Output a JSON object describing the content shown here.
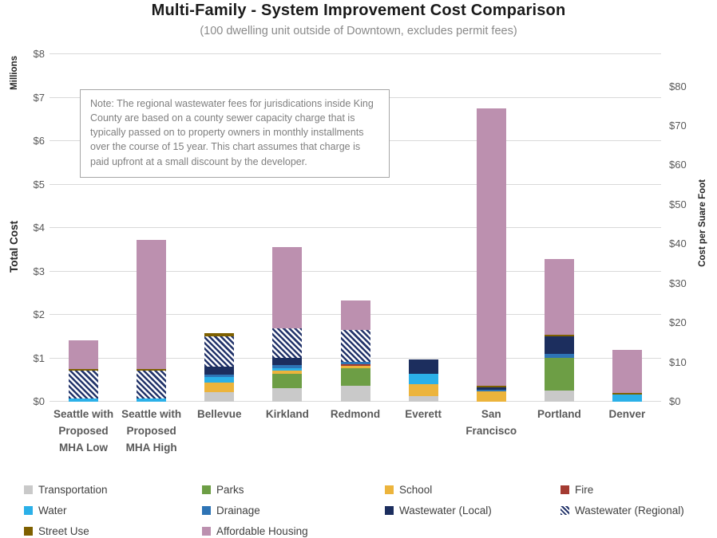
{
  "note": {
    "text": "Note: The regional wastewater fees for jurisdications inside King County are based on a county sewer capacity charge that is typically passed on to property owners in monthly installments over the course of 15 year. This chart assumes that charge is paid upfront at a small discount by the developer."
  },
  "chart_data": {
    "type": "bar",
    "stacked": true,
    "title": "Multi-Family - System Improvement Cost Comparison",
    "subtitle": "(100 dwelling unit outside of Downtown, excludes permit fees)",
    "categories": [
      "Seattle with Proposed MHA Low",
      "Seattle with Proposed MHA High",
      "Bellevue",
      "Kirkland",
      "Redmond",
      "Everett",
      "San Francisco",
      "Portland",
      "Denver"
    ],
    "units": "millions of dollars",
    "series": [
      {
        "name": "Transportation",
        "color": "#c9c9c9",
        "pattern": "solid",
        "values": [
          0,
          0,
          0.22,
          0.31,
          0.37,
          0.12,
          0,
          0.26,
          0
        ]
      },
      {
        "name": "Parks",
        "color": "#6d9e45",
        "pattern": "solid",
        "values": [
          0,
          0,
          0,
          0.34,
          0.4,
          0,
          0,
          0.75,
          0
        ]
      },
      {
        "name": "School",
        "color": "#ecb43c",
        "pattern": "solid",
        "values": [
          0,
          0,
          0.22,
          0.07,
          0.06,
          0.28,
          0.23,
          0,
          0
        ]
      },
      {
        "name": "Fire",
        "color": "#a43b32",
        "pattern": "solid",
        "values": [
          0,
          0,
          0,
          0,
          0.04,
          0,
          0,
          0,
          0
        ]
      },
      {
        "name": "Water",
        "color": "#2bb0e8",
        "pattern": "solid",
        "values": [
          0.08,
          0.08,
          0.13,
          0.06,
          0,
          0.25,
          0,
          0,
          0.17
        ]
      },
      {
        "name": "Drainage",
        "color": "#2e74b5",
        "pattern": "solid",
        "values": [
          0,
          0,
          0.05,
          0.06,
          0.05,
          0,
          0.04,
          0.1,
          0
        ]
      },
      {
        "name": "Wastewater (Local)",
        "color": "#1c2e5e",
        "pattern": "solid",
        "values": [
          0,
          0,
          0.19,
          0.17,
          0,
          0.32,
          0.06,
          0.4,
          0
        ]
      },
      {
        "name": "Wastewater (Regional)",
        "color": "#24356b",
        "pattern": "hatch",
        "values": [
          0.63,
          0.63,
          0.7,
          0.67,
          0.74,
          0,
          0,
          0,
          0
        ]
      },
      {
        "name": "Street Use",
        "color": "#7e6000",
        "pattern": "solid",
        "values": [
          0.05,
          0.05,
          0.06,
          0,
          0,
          0,
          0.03,
          0.03,
          0.04
        ]
      },
      {
        "name": "Affordable Housing",
        "color": "#bc90af",
        "pattern": "solid",
        "values": [
          0.66,
          2.97,
          0,
          1.88,
          0.67,
          0,
          6.39,
          1.75,
          0.99
        ]
      }
    ],
    "totals": [
      1.42,
      3.73,
      1.57,
      3.56,
      2.33,
      0.97,
      6.75,
      3.29,
      1.2
    ],
    "axes": {
      "left": {
        "title": "Total Cost",
        "units_label": "Millions",
        "ticks": [
          "$0",
          "$1",
          "$2",
          "$3",
          "$4",
          "$5",
          "$6",
          "$7",
          "$8"
        ],
        "min": 0,
        "max": 8
      },
      "right": {
        "title": "Cost per Suare Foot",
        "ticks": [
          "$0",
          "$10",
          "$20",
          "$30",
          "$40",
          "$50",
          "$60",
          "$70",
          "$80"
        ],
        "min": 0,
        "max": 80,
        "millions_per_dollar_sqft": 0.0907
      }
    },
    "legend_rows": [
      [
        "Transportation",
        "Parks",
        "School",
        "Fire"
      ],
      [
        "Water",
        "Drainage",
        "Wastewater (Local)",
        "Wastewater (Regional)"
      ],
      [
        "Street Use",
        "Affordable Housing"
      ]
    ],
    "grid": "horizontal",
    "colors": {
      "gridline": "#d9d9d9",
      "tick_text": "#595959",
      "note_text": "#7f7f7f",
      "title_text": "#1a1a1a",
      "subtitle_text": "#8a8a8a"
    }
  }
}
